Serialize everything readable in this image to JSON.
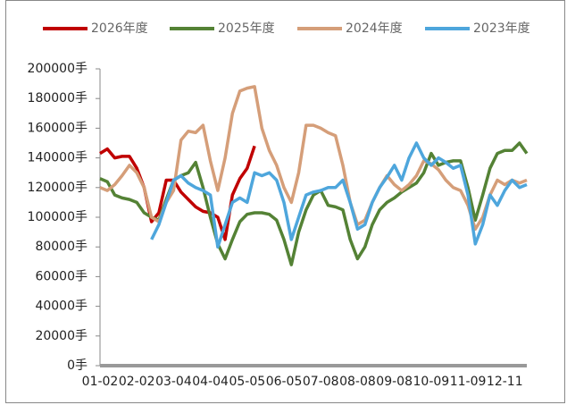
{
  "chart_data": {
    "type": "line",
    "categories": [
      "01-02",
      null,
      null,
      null,
      null,
      "02-02",
      null,
      null,
      null,
      null,
      "03-04",
      null,
      null,
      null,
      null,
      "04-04",
      null,
      null,
      null,
      null,
      "05-05",
      null,
      null,
      null,
      null,
      "06-05",
      null,
      null,
      null,
      null,
      "07-08",
      null,
      null,
      null,
      null,
      "08-08",
      null,
      null,
      null,
      null,
      "09-08",
      null,
      null,
      null,
      null,
      "10-09",
      null,
      null,
      null,
      null,
      "11-09",
      null,
      null,
      null,
      null,
      "12-11",
      null,
      null,
      null
    ],
    "series": [
      {
        "name": "2026年度",
        "color": "#c00000",
        "values": [
          143000,
          146000,
          140000,
          141000,
          141000,
          133000,
          120000,
          97000,
          103000,
          125000,
          125000,
          117000,
          112000,
          107000,
          104000,
          103000,
          100000,
          85000,
          115000,
          126000,
          133000,
          148000,
          null,
          null,
          null,
          null,
          null,
          null,
          null,
          null,
          null,
          null,
          null,
          null,
          null,
          null,
          null,
          null,
          null,
          null,
          null,
          null,
          null,
          null,
          null,
          null,
          null,
          null,
          null,
          null,
          null,
          null,
          null,
          null,
          null,
          null,
          null,
          null,
          null
        ]
      },
      {
        "name": "2025年度",
        "color": "#548235",
        "values": [
          126000,
          124000,
          115000,
          113000,
          112000,
          110000,
          103000,
          100000,
          98000,
          112000,
          125000,
          128000,
          130000,
          137000,
          120000,
          100000,
          82000,
          72000,
          85000,
          97000,
          102000,
          103000,
          103000,
          102000,
          98000,
          85000,
          68000,
          90000,
          105000,
          115000,
          118000,
          108000,
          107000,
          105000,
          85000,
          72000,
          80000,
          95000,
          105000,
          110000,
          113000,
          117000,
          120000,
          123000,
          130000,
          143000,
          135000,
          137000,
          138000,
          138000,
          120000,
          98000,
          115000,
          133000,
          143000,
          145000,
          145000,
          150000,
          143000
        ]
      },
      {
        "name": "2024年度",
        "color": "#d59e79",
        "values": [
          120000,
          118000,
          122000,
          128000,
          135000,
          130000,
          120000,
          100000,
          97000,
          110000,
          118000,
          152000,
          158000,
          157000,
          162000,
          138000,
          118000,
          140000,
          170000,
          185000,
          187000,
          188000,
          160000,
          145000,
          135000,
          120000,
          110000,
          130000,
          162000,
          162000,
          160000,
          157000,
          155000,
          135000,
          110000,
          95000,
          98000,
          110000,
          120000,
          128000,
          122000,
          118000,
          122000,
          128000,
          138000,
          136000,
          132000,
          125000,
          120000,
          118000,
          108000,
          92000,
          100000,
          115000,
          125000,
          122000,
          125000,
          123000,
          125000
        ]
      },
      {
        "name": "2023年度",
        "color": "#4ea6dc",
        "values": [
          null,
          null,
          null,
          null,
          null,
          null,
          null,
          85000,
          95000,
          110000,
          125000,
          128000,
          123000,
          120000,
          118000,
          115000,
          80000,
          95000,
          110000,
          113000,
          110000,
          130000,
          128000,
          130000,
          125000,
          110000,
          85000,
          100000,
          115000,
          117000,
          118000,
          120000,
          120000,
          125000,
          110000,
          92000,
          95000,
          110000,
          120000,
          127000,
          135000,
          125000,
          140000,
          150000,
          140000,
          135000,
          140000,
          137000,
          133000,
          135000,
          115000,
          82000,
          95000,
          115000,
          108000,
          118000,
          125000,
          120000,
          122000
        ]
      }
    ],
    "ylim": [
      0,
      200000
    ],
    "yticks": [
      {
        "value": 0,
        "label": "0手"
      },
      {
        "value": 20000,
        "label": "20000手"
      },
      {
        "value": 40000,
        "label": "40000手"
      },
      {
        "value": 60000,
        "label": "60000手"
      },
      {
        "value": 80000,
        "label": "80000手"
      },
      {
        "value": 100000,
        "label": "100000手"
      },
      {
        "value": 120000,
        "label": "120000手"
      },
      {
        "value": 140000,
        "label": "140000手"
      },
      {
        "value": 160000,
        "label": "160000手"
      },
      {
        "value": 180000,
        "label": "180000手"
      },
      {
        "value": 200000,
        "label": "200000手"
      }
    ],
    "legend": "top"
  }
}
